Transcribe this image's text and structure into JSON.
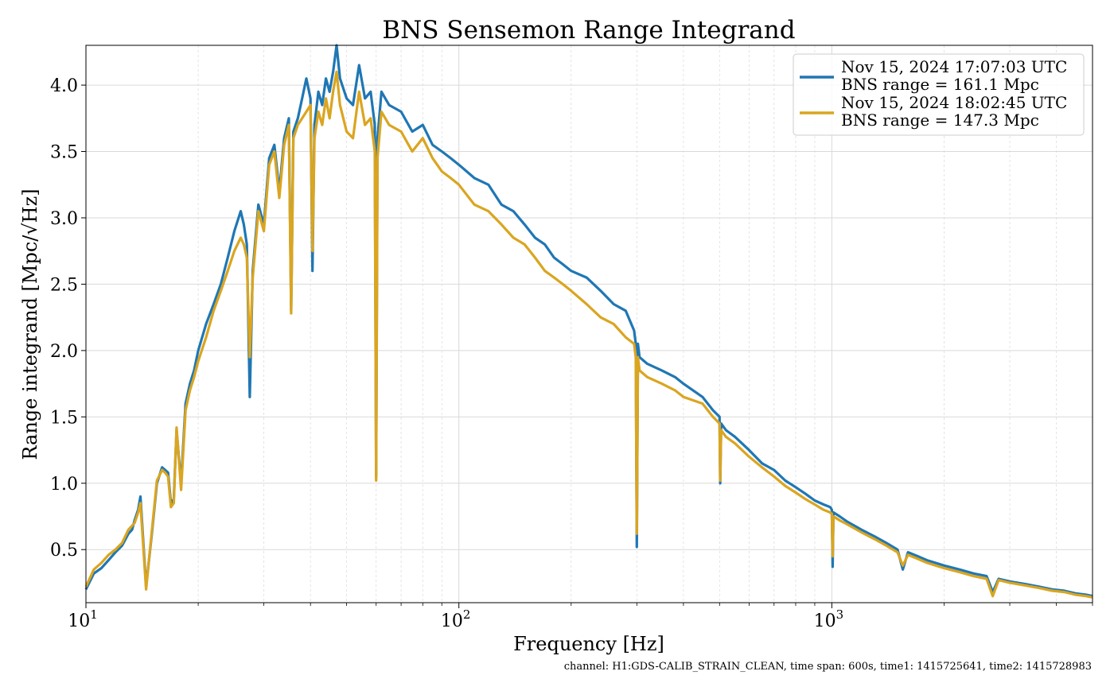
{
  "chart_data": {
    "type": "line",
    "title": "BNS Sensemon Range Integrand",
    "xlabel": "Frequency [Hz]",
    "ylabel": "Range integrand [Mpc/√Hz]",
    "xscale": "log",
    "xlim": [
      10,
      5000
    ],
    "ylim": [
      0.1,
      4.3
    ],
    "grid": "on",
    "legend_position": "top-right",
    "y_ticks": [
      "0.5",
      "1.0",
      "1.5",
      "2.0",
      "2.5",
      "3.0",
      "3.5",
      "4.0"
    ],
    "x_ticks": [
      {
        "base": "10",
        "exp": "1"
      },
      {
        "base": "10",
        "exp": "2"
      },
      {
        "base": "10",
        "exp": "3"
      }
    ],
    "footnote": "channel: H1:GDS-CALIB_STRAIN_CLEAN, time span: 600s, time1: 1415725641, time2: 1415728983",
    "series": [
      {
        "name": "Nov 15, 2024 17:07:03 UTC",
        "name2": "BNS range = 161.1 Mpc",
        "color": "#1f77b4",
        "x": [
          10,
          10.5,
          11,
          11.5,
          12,
          12.5,
          13,
          13.3,
          13.5,
          13.8,
          14,
          14.5,
          15,
          15.5,
          16,
          16.3,
          16.6,
          16.9,
          17.2,
          17.5,
          18,
          18.5,
          19,
          19.5,
          20,
          21,
          22,
          23,
          24,
          25,
          26,
          26.5,
          27,
          27.5,
          28,
          29,
          30,
          31,
          32,
          33,
          34,
          35,
          35.5,
          36,
          37,
          38,
          39,
          40,
          40.5,
          41,
          42,
          43,
          44,
          45,
          46,
          47,
          48,
          50,
          52,
          54,
          56,
          58,
          59.5,
          60,
          60.5,
          62,
          65,
          70,
          75,
          80,
          85,
          90,
          95,
          100,
          110,
          120,
          130,
          140,
          150,
          160,
          170,
          180,
          190,
          200,
          220,
          240,
          260,
          280,
          295,
          298,
          300,
          302,
          305,
          320,
          350,
          380,
          400,
          450,
          480,
          500,
          502,
          505,
          520,
          550,
          600,
          650,
          700,
          750,
          800,
          850,
          900,
          950,
          990,
          1000,
          1005,
          1010,
          1050,
          1100,
          1200,
          1300,
          1400,
          1500,
          1550,
          1600,
          1700,
          1800,
          2000,
          2200,
          2400,
          2600,
          2700,
          2800,
          3000,
          3300,
          3600,
          3900,
          4200,
          4500,
          4800,
          5000
        ],
        "y": [
          0.2,
          0.32,
          0.36,
          0.42,
          0.48,
          0.53,
          0.62,
          0.65,
          0.72,
          0.8,
          0.9,
          0.22,
          0.6,
          1.0,
          1.12,
          1.1,
          1.08,
          0.85,
          0.88,
          1.4,
          1.0,
          1.6,
          1.75,
          1.85,
          2.0,
          2.2,
          2.35,
          2.5,
          2.7,
          2.9,
          3.05,
          2.95,
          2.8,
          1.65,
          2.6,
          3.1,
          2.95,
          3.45,
          3.55,
          3.2,
          3.6,
          3.75,
          2.3,
          3.65,
          3.75,
          3.9,
          4.05,
          3.9,
          2.6,
          3.7,
          3.95,
          3.85,
          4.05,
          3.95,
          4.1,
          4.3,
          4.05,
          3.9,
          3.85,
          4.15,
          3.9,
          3.95,
          3.7,
          1.05,
          3.6,
          3.95,
          3.85,
          3.8,
          3.65,
          3.7,
          3.55,
          3.5,
          3.45,
          3.4,
          3.3,
          3.25,
          3.1,
          3.05,
          2.95,
          2.85,
          2.8,
          2.7,
          2.65,
          2.6,
          2.55,
          2.45,
          2.35,
          2.3,
          2.15,
          2.05,
          0.52,
          2.05,
          1.95,
          1.9,
          1.85,
          1.8,
          1.75,
          1.65,
          1.55,
          1.5,
          1.0,
          1.45,
          1.4,
          1.35,
          1.25,
          1.15,
          1.1,
          1.02,
          0.97,
          0.92,
          0.87,
          0.84,
          0.82,
          0.8,
          0.37,
          0.78,
          0.75,
          0.71,
          0.65,
          0.6,
          0.55,
          0.5,
          0.35,
          0.48,
          0.45,
          0.42,
          0.38,
          0.35,
          0.32,
          0.3,
          0.18,
          0.28,
          0.26,
          0.24,
          0.22,
          0.2,
          0.19,
          0.17,
          0.16,
          0.15
        ]
      },
      {
        "name": "Nov 15, 2024 18:02:45 UTC",
        "name2": "BNS range = 147.3 Mpc",
        "color": "#daa520",
        "x": [
          10,
          10.5,
          11,
          11.5,
          12,
          12.5,
          13,
          13.3,
          13.5,
          13.8,
          14,
          14.5,
          15,
          15.5,
          16,
          16.3,
          16.6,
          16.9,
          17.2,
          17.5,
          18,
          18.5,
          19,
          19.5,
          20,
          21,
          22,
          23,
          24,
          25,
          26,
          26.5,
          27,
          27.5,
          28,
          29,
          30,
          31,
          32,
          33,
          34,
          35,
          35.5,
          36,
          37,
          38,
          39,
          40,
          40.5,
          41,
          42,
          43,
          44,
          45,
          46,
          47,
          48,
          50,
          52,
          54,
          56,
          58,
          59.5,
          60,
          60.5,
          62,
          65,
          70,
          75,
          80,
          85,
          90,
          95,
          100,
          110,
          120,
          130,
          140,
          150,
          160,
          170,
          180,
          190,
          200,
          220,
          240,
          260,
          280,
          295,
          298,
          300,
          302,
          305,
          320,
          350,
          380,
          400,
          450,
          480,
          500,
          502,
          505,
          520,
          550,
          600,
          650,
          700,
          750,
          800,
          850,
          900,
          950,
          990,
          1000,
          1005,
          1010,
          1050,
          1100,
          1200,
          1300,
          1400,
          1500,
          1550,
          1600,
          1700,
          1800,
          2000,
          2200,
          2400,
          2600,
          2700,
          2800,
          3000,
          3300,
          3600,
          3900,
          4200,
          4500,
          4800,
          5000
        ],
        "y": [
          0.22,
          0.35,
          0.4,
          0.46,
          0.5,
          0.55,
          0.65,
          0.68,
          0.7,
          0.78,
          0.85,
          0.2,
          0.62,
          1.02,
          1.1,
          1.08,
          1.05,
          0.82,
          0.85,
          1.42,
          0.95,
          1.55,
          1.7,
          1.8,
          1.92,
          2.1,
          2.3,
          2.45,
          2.6,
          2.75,
          2.85,
          2.8,
          2.7,
          1.95,
          2.55,
          3.05,
          2.9,
          3.4,
          3.5,
          3.15,
          3.55,
          3.7,
          2.28,
          3.6,
          3.7,
          3.75,
          3.8,
          3.85,
          2.75,
          3.6,
          3.8,
          3.7,
          3.9,
          3.75,
          3.95,
          4.1,
          3.85,
          3.65,
          3.6,
          3.95,
          3.7,
          3.75,
          3.5,
          1.02,
          3.45,
          3.8,
          3.7,
          3.65,
          3.5,
          3.6,
          3.45,
          3.35,
          3.3,
          3.25,
          3.1,
          3.05,
          2.95,
          2.85,
          2.8,
          2.7,
          2.6,
          2.55,
          2.5,
          2.45,
          2.35,
          2.25,
          2.2,
          2.1,
          2.05,
          1.95,
          0.62,
          1.95,
          1.85,
          1.8,
          1.75,
          1.7,
          1.65,
          1.6,
          1.5,
          1.45,
          1.02,
          1.4,
          1.35,
          1.3,
          1.2,
          1.12,
          1.05,
          0.98,
          0.93,
          0.88,
          0.84,
          0.8,
          0.78,
          0.77,
          0.45,
          0.75,
          0.72,
          0.69,
          0.63,
          0.58,
          0.53,
          0.48,
          0.38,
          0.46,
          0.43,
          0.4,
          0.36,
          0.33,
          0.3,
          0.28,
          0.15,
          0.27,
          0.25,
          0.23,
          0.21,
          0.19,
          0.18,
          0.16,
          0.15,
          0.14
        ]
      }
    ]
  }
}
